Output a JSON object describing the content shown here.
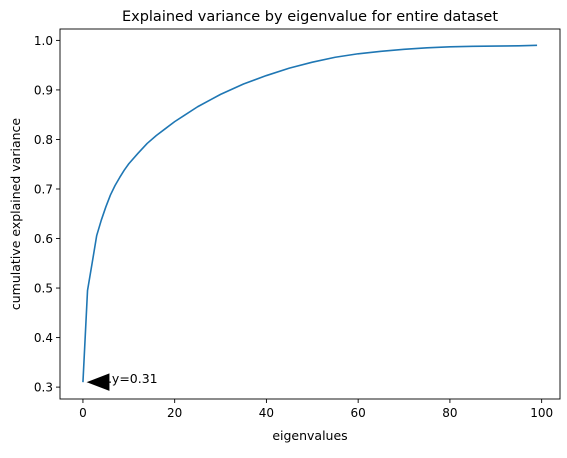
{
  "chart_data": {
    "type": "line",
    "title": "Explained variance by eigenvalue for entire dataset",
    "xlabel": "eigenvalues",
    "ylabel": "cumulative explained variance",
    "xlim": [
      -5.0,
      104.0
    ],
    "ylim": [
      0.276,
      1.023
    ],
    "xticks": [
      0,
      20,
      40,
      60,
      80,
      100
    ],
    "yticks": [
      0.3,
      0.4,
      0.5,
      0.6,
      0.7,
      0.8,
      0.9,
      1.0
    ],
    "xtick_labels": [
      "0",
      "20",
      "40",
      "60",
      "80",
      "100"
    ],
    "ytick_labels": [
      "0.3",
      "0.4",
      "0.5",
      "0.6",
      "0.7",
      "0.8",
      "0.9",
      "1.0"
    ],
    "grid": false,
    "series": [
      {
        "color": "#1f77b4",
        "x": [
          0,
          1,
          2,
          3,
          4,
          5,
          6,
          7,
          8,
          9,
          10,
          12,
          14,
          16,
          18,
          20,
          22,
          25,
          28,
          30,
          35,
          40,
          45,
          50,
          55,
          60,
          65,
          70,
          75,
          80,
          85,
          90,
          95,
          99
        ],
        "y": [
          0.31,
          0.495,
          0.55,
          0.606,
          0.637,
          0.664,
          0.688,
          0.707,
          0.723,
          0.738,
          0.751,
          0.772,
          0.792,
          0.808,
          0.822,
          0.836,
          0.848,
          0.866,
          0.881,
          0.891,
          0.912,
          0.929,
          0.944,
          0.956,
          0.966,
          0.973,
          0.978,
          0.982,
          0.985,
          0.987,
          0.988,
          0.9885,
          0.989,
          0.99
        ]
      }
    ],
    "annotations": [
      {
        "text": "y=0.31",
        "x": 0,
        "y": 0.31,
        "arrow": true
      }
    ]
  }
}
